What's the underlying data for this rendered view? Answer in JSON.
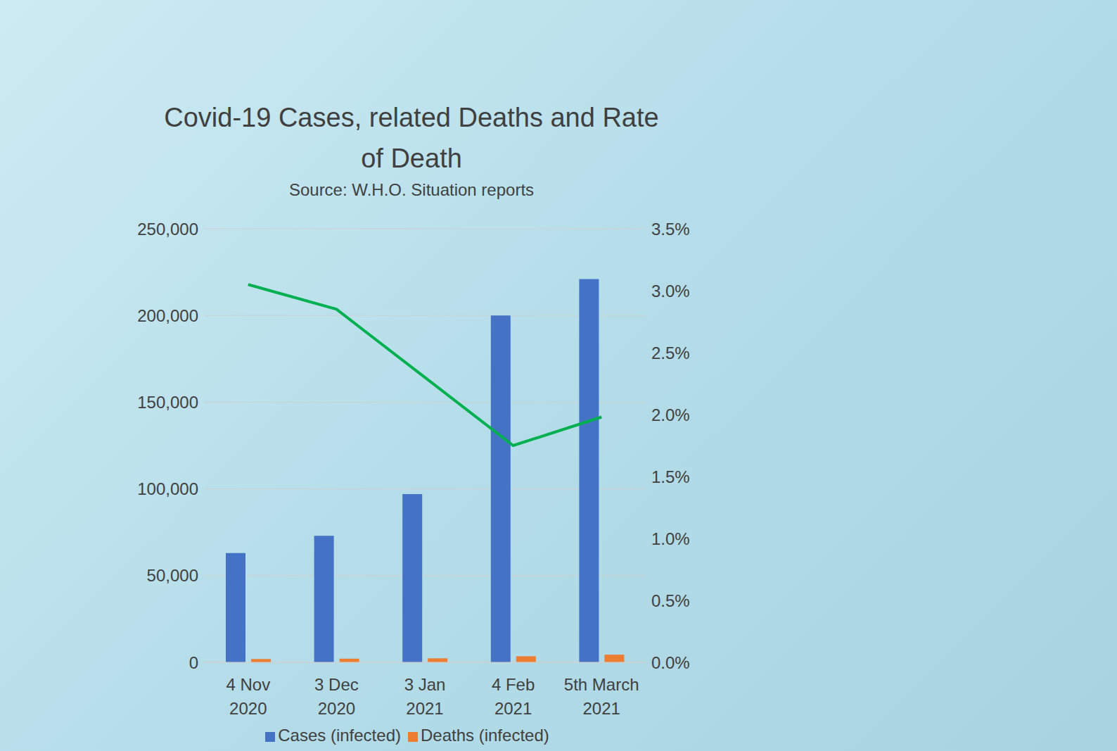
{
  "chart_data": {
    "type": "bar",
    "title": "Covid-19 Cases, related Deaths and Rate of Death",
    "subtitle": "Source: W.H.O. Situation reports",
    "categories": [
      "4 Nov 2020",
      "3 Dec 2020",
      "3 Jan 2021",
      "4 Feb 2021",
      "5th March 2021"
    ],
    "series": [
      {
        "name": "Cases (infected)",
        "type": "bar",
        "color": "#4472c4",
        "values": [
          63000,
          73000,
          97000,
          200000,
          221000
        ]
      },
      {
        "name": "Deaths (infected)",
        "type": "bar",
        "color": "#ed7d31",
        "values": [
          1900,
          2100,
          2300,
          3500,
          4400
        ]
      },
      {
        "type": "line",
        "axis": "y2",
        "color": "#00b050",
        "values": [
          3.05,
          2.85,
          2.3,
          1.75,
          1.98
        ]
      }
    ],
    "ylim": [
      0,
      250000
    ],
    "yticks": [
      0,
      {
        "value": 50000,
        "label": "50,000"
      },
      {
        "value": 100000,
        "label": "100,000"
      },
      {
        "value": 150000,
        "label": "150,000"
      },
      {
        "value": 200000,
        "label": "200,000"
      },
      {
        "value": 250000,
        "label": "250,000"
      }
    ],
    "y2lim": [
      0,
      3.5
    ],
    "y2ticks": [
      {
        "value": 0,
        "label": "0.0%"
      },
      {
        "value": 0.5,
        "label": "0.5%"
      },
      {
        "value": 1,
        "label": "1.0%"
      },
      {
        "value": 1.5,
        "label": "1.5%"
      },
      {
        "value": 2,
        "label": "2.0%"
      },
      {
        "value": 2.5,
        "label": "2.5%"
      },
      {
        "value": 3,
        "label": "3.0%"
      },
      {
        "value": 3.5,
        "label": "3.5%"
      }
    ],
    "grid": true,
    "legend": "bottom"
  }
}
